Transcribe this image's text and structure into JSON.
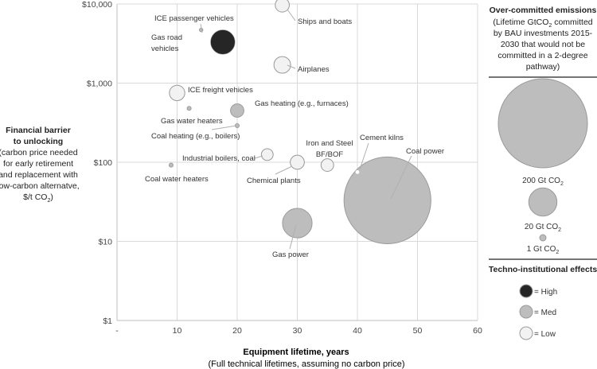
{
  "chart_data": {
    "type": "scatter",
    "variant": "bubble",
    "xlabel": "Equipment lifetime, years",
    "xlabel_sub": "(Full technical lifetimes, assuming no carbon price)",
    "ylabel_lines": [
      "Financial barrier",
      "to unlocking"
    ],
    "ylabel_sub_lines": [
      "(carbon price needed",
      "for early retirement",
      "and replacement with",
      "low-carbon alternatve,",
      "$/t CO",
      "2",
      ")"
    ],
    "xlim": [
      0,
      60
    ],
    "ylim": [
      1,
      10000
    ],
    "yscale": "log",
    "grid": true,
    "x_ticks": [
      {
        "value": 0,
        "label": "-"
      },
      {
        "value": 10,
        "label": "10"
      },
      {
        "value": 20,
        "label": "20"
      },
      {
        "value": 30,
        "label": "30"
      },
      {
        "value": 40,
        "label": "40"
      },
      {
        "value": 50,
        "label": "50"
      },
      {
        "value": 60,
        "label": "60"
      }
    ],
    "y_ticks": [
      {
        "value": 1,
        "label": "$1"
      },
      {
        "value": 10,
        "label": "$10"
      },
      {
        "value": 100,
        "label": "$100"
      },
      {
        "value": 1000,
        "label": "$1,000"
      },
      {
        "value": 10000,
        "label": "$10,000"
      }
    ],
    "colors": {
      "High": "#262626",
      "Med": "#bdbdbd",
      "Low": "#f2f2f2",
      "edge": "#9a9a9a",
      "grid": "#d9d9d9"
    },
    "points": [
      {
        "label": "ICE passenger vehicles",
        "x": 14,
        "y": 4700,
        "emissions_gt": 0.3,
        "effect": "Med",
        "label_pos": "callout"
      },
      {
        "label": "Gas road vehicles",
        "x": 17.6,
        "y": 3300,
        "emissions_gt": 15,
        "effect": "High",
        "label_pos": "left"
      },
      {
        "label": "Ships and boats",
        "x": 27.5,
        "y": 9700,
        "emissions_gt": 5,
        "effect": "Low",
        "label_pos": "callout"
      },
      {
        "label": "Airplanes",
        "x": 27.5,
        "y": 1700,
        "emissions_gt": 7,
        "effect": "Low",
        "label_pos": "right"
      },
      {
        "label": "ICE freight vehicles",
        "x": 10,
        "y": 750,
        "emissions_gt": 6,
        "effect": "Low",
        "label_pos": "right"
      },
      {
        "label": "Gas water heaters",
        "x": 12,
        "y": 480,
        "emissions_gt": 0.4,
        "effect": "Med",
        "label_pos": "below"
      },
      {
        "label": "Gas heating (e.g., furnaces)",
        "x": 20,
        "y": 450,
        "emissions_gt": 4.5,
        "effect": "Med",
        "label_pos": "right"
      },
      {
        "label": "Coal heating (e.g., boilers)",
        "x": 20,
        "y": 290,
        "emissions_gt": 0.4,
        "effect": "Med",
        "label_pos": "callout"
      },
      {
        "label": "Industrial boilers, coal",
        "x": 25,
        "y": 125,
        "emissions_gt": 3.5,
        "effect": "Low",
        "label_pos": "callout"
      },
      {
        "label": "Coal water heaters",
        "x": 9,
        "y": 92,
        "emissions_gt": 0.4,
        "effect": "Med",
        "label_pos": "below"
      },
      {
        "label": "Chemical plants",
        "x": 30,
        "y": 100,
        "emissions_gt": 5,
        "effect": "Low",
        "label_pos": "callout"
      },
      {
        "label": "Iron and Steel BF/BOF",
        "x": 35,
        "y": 92,
        "emissions_gt": 4,
        "effect": "Low",
        "label_pos": "above"
      },
      {
        "label": "Cement kilns",
        "x": 40,
        "y": 75,
        "emissions_gt": 0.3,
        "effect": "Low",
        "label_pos": "callout"
      },
      {
        "label": "Coal power",
        "x": 45,
        "y": 33,
        "emissions_gt": 190,
        "effect": "Med",
        "label_pos": "callout"
      },
      {
        "label": "Gas power",
        "x": 30,
        "y": 17,
        "emissions_gt": 22,
        "effect": "Med",
        "label_pos": "callout"
      }
    ],
    "legend": {
      "size_title": "Over-committed emissions",
      "size_subtitle_lines": [
        "(Lifetime GtCO",
        "2",
        " committed",
        "by BAU investments 2015-",
        "2030 that would not be",
        "committed in a 2-degree",
        "pathway)"
      ],
      "size_items": [
        {
          "value": 200,
          "label": "200 Gt CO",
          "sub": "2"
        },
        {
          "value": 20,
          "label": "20 Gt CO",
          "sub": "2"
        },
        {
          "value": 1,
          "label": "1 Gt CO",
          "sub": "2"
        }
      ],
      "color_title": "Techno-institutional effects",
      "color_items": [
        {
          "effect": "High",
          "label": "= High"
        },
        {
          "effect": "Med",
          "label": "= Med"
        },
        {
          "effect": "Low",
          "label": "= Low"
        }
      ]
    }
  }
}
